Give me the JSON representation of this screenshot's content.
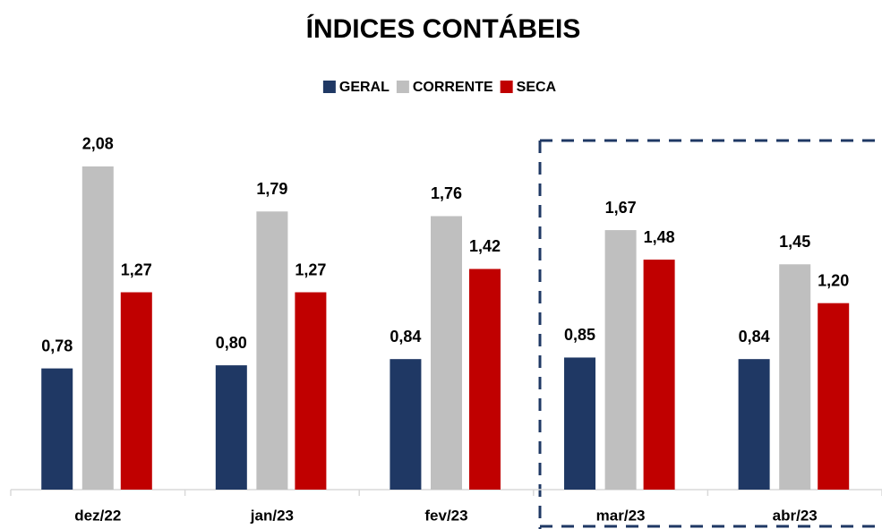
{
  "chart_data": {
    "type": "bar",
    "title": "ÍNDICES CONTÁBEIS",
    "categories": [
      "dez/22",
      "jan/23",
      "fev/23",
      "mar/23",
      "abr/23"
    ],
    "series": [
      {
        "name": "GERAL",
        "color": "#1f3864",
        "values": [
          0.78,
          0.8,
          0.84,
          0.85,
          0.84
        ],
        "value_labels": [
          "0,78",
          "0,80",
          "0,84",
          "0,85",
          "0,84"
        ]
      },
      {
        "name": "CORRENTE",
        "color": "#bfbfbf",
        "values": [
          2.08,
          1.79,
          1.76,
          1.67,
          1.45
        ],
        "value_labels": [
          "2,08",
          "1,79",
          "1,76",
          "1,67",
          "1,45"
        ]
      },
      {
        "name": "SECA",
        "color": "#c00000",
        "values": [
          1.27,
          1.27,
          1.42,
          1.48,
          1.2
        ],
        "value_labels": [
          "1,27",
          "1,27",
          "1,42",
          "1,48",
          "1,20"
        ]
      }
    ],
    "ylim": [
      0,
      2.5
    ],
    "legend": "top"
  }
}
